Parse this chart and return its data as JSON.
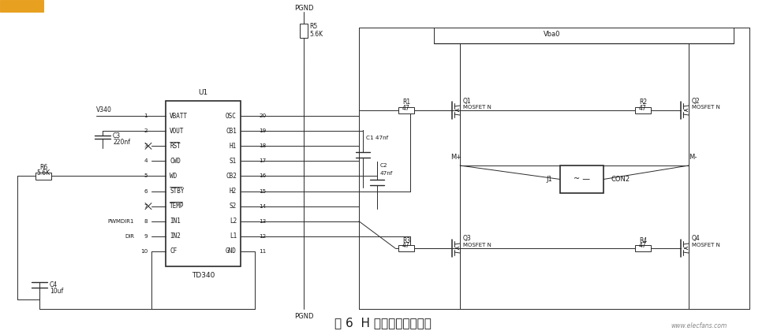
{
  "title": "图 6  H 桥电机驱动电路图",
  "bg_color": "#f0f0f0",
  "line_color": "#333333",
  "text_color": "#333333",
  "watermark": "www.elecfans.com",
  "ic_left_pins": [
    "VBATT",
    "VOUT",
    "RST",
    "CWD",
    "WD",
    "STBY",
    "TEMP",
    "IN1",
    "IN2",
    "CF"
  ],
  "ic_right_pins": [
    "OSC",
    "CB1",
    "H1",
    "S1",
    "CB2",
    "H2",
    "S2",
    "L2",
    "L1",
    "GND"
  ],
  "ic_left_nums": [
    "1",
    "2",
    "3",
    "4",
    "5",
    "6",
    "7",
    "8",
    "9",
    "10"
  ],
  "ic_right_nums": [
    "20",
    "19",
    "18",
    "17",
    "16",
    "15",
    "14",
    "13",
    "12",
    "11"
  ],
  "overline_pins_left": [
    "RST",
    "STBY",
    "TEMP"
  ]
}
